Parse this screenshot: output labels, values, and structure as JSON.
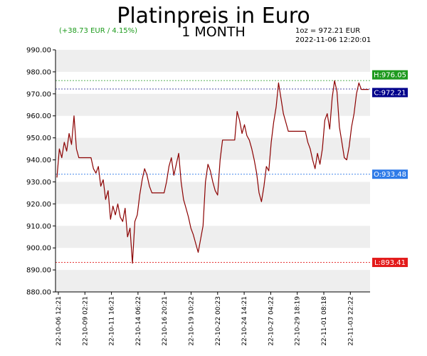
{
  "chart_data": {
    "type": "line",
    "title": "Platinpreis in Euro",
    "subtitle": "1 MONTH",
    "change": "(+38.73 EUR / 4.15%)",
    "info_price": "1oz = 972.21 EUR",
    "info_time": "2022-11-06 12:20:01",
    "ylim": [
      880,
      990
    ],
    "yticks": [
      "990.00",
      "980.00",
      "970.00",
      "960.00",
      "950.00",
      "940.00",
      "930.00",
      "920.00",
      "910.00",
      "900.00",
      "890.00",
      "880.00"
    ],
    "ytick_values": [
      990,
      980,
      970,
      960,
      950,
      940,
      930,
      920,
      910,
      900,
      890,
      880
    ],
    "xticks": [
      "22-10-06 12:21",
      "22-10-09 02:21",
      "22-10-11 16:21",
      "22-10-14 06:22",
      "22-10-16 20:21",
      "22-10-19 10:22",
      "22-10-22 00:23",
      "22-10-24 14:21",
      "22-10-27 04:22",
      "22-10-29 18:19",
      "22-11-01 08:18",
      "22-11-03 22:22"
    ],
    "series": [
      {
        "values": [
          932,
          945,
          941,
          948,
          944,
          952,
          947,
          960,
          945,
          941,
          941,
          941,
          941,
          941,
          941,
          936,
          934,
          937,
          928,
          931,
          922,
          926,
          913,
          919,
          915,
          920,
          914,
          912,
          918,
          905,
          909,
          893,
          912,
          915,
          924,
          931,
          936,
          933,
          928,
          925,
          925,
          925,
          925,
          925,
          925,
          930,
          937,
          941,
          933,
          938,
          943,
          930,
          922,
          918,
          914,
          909,
          906,
          902,
          898,
          904,
          910,
          930,
          938,
          935,
          930,
          926,
          924,
          940,
          949,
          949,
          949,
          949,
          949,
          949,
          962,
          958,
          952,
          956,
          951,
          949,
          945,
          940,
          934,
          925,
          921,
          928,
          937,
          935,
          948,
          957,
          964,
          975,
          968,
          961,
          957,
          953,
          953,
          953,
          953,
          953,
          953,
          953,
          953,
          948,
          945,
          940,
          936,
          943,
          938,
          945,
          958,
          961,
          954,
          968,
          976,
          971,
          955,
          948,
          941,
          940,
          946,
          955,
          961,
          970,
          975,
          972,
          972,
          972,
          972
        ]
      }
    ],
    "open": {
      "label": "O:933.48",
      "value": 933.48
    },
    "close": {
      "label": "C:972.21",
      "value": 972.21
    },
    "high": {
      "label": "H:976.05",
      "value": 976.05
    },
    "low": {
      "label": "L:893.41",
      "value": 893.41
    },
    "colors": {
      "line": "#8b0000",
      "band": "#eeeeee",
      "open_tag": "#2e7be8",
      "close_tag": "#00008b",
      "high_tag": "#1f9a1f",
      "low_tag": "#e31a1a",
      "change_text": "#1a9a1a"
    }
  }
}
